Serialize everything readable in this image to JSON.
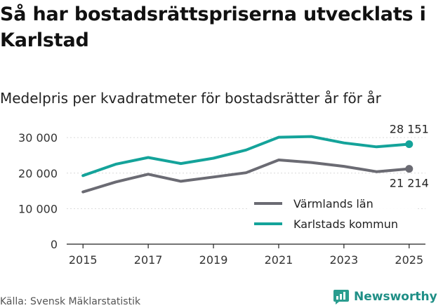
{
  "title": "Så har bostadsrättspriserna utvecklats i Karlstad",
  "subtitle": "Medelpris per kvadratmeter för bostadsrätter år för år",
  "source": "Källa: Svensk Mäklarstatistik",
  "brand": {
    "name": "Newsworthy",
    "icon": "newsworthy-logo-icon",
    "color": "#2a9d8f"
  },
  "chart_data": {
    "type": "line",
    "title": "Så har bostadsrättspriserna utvecklats i Karlstad",
    "subtitle": "Medelpris per kvadratmeter för bostadsrätter år för år",
    "xlabel": "",
    "ylabel": "",
    "x": [
      2015,
      2016,
      2017,
      2018,
      2019,
      2020,
      2021,
      2022,
      2023,
      2024,
      2025
    ],
    "x_ticks": [
      2015,
      2017,
      2019,
      2021,
      2023,
      2025
    ],
    "y_ticks": [
      0,
      10000,
      20000,
      30000
    ],
    "y_tick_labels": [
      "0",
      "10 000",
      "20 000",
      "30 000"
    ],
    "ylim": [
      0,
      32000
    ],
    "grid": "horizontal",
    "legend_position": "bottom-right",
    "series": [
      {
        "name": "Värmlands län",
        "color": "#6b6b73",
        "values": [
          14700,
          17500,
          19700,
          17700,
          18900,
          20100,
          23700,
          23000,
          21900,
          20400,
          21214
        ],
        "end_label": "21 214",
        "end_label_position": "below"
      },
      {
        "name": "Karlstads kommun",
        "color": "#14a39a",
        "values": [
          19300,
          22500,
          24400,
          22700,
          24200,
          26500,
          30100,
          30300,
          28500,
          27400,
          28151
        ],
        "end_label": "28 151",
        "end_label_position": "above"
      }
    ]
  }
}
